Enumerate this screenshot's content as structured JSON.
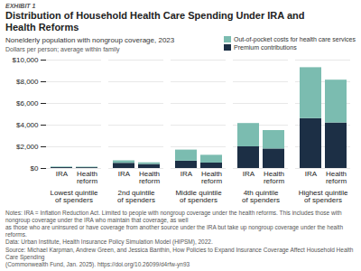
{
  "chart_data": {
    "type": "bar",
    "stacked": true,
    "exhibit": "EXHIBIT 1",
    "title": "Distribution of Household Health Care Spending Under IRA and\nHealth Reforms",
    "subtitle": "Nonelderly population with nongroup coverage, 2023",
    "ylabel": "Dollars per person; average within family",
    "groups": [
      "Lowest quintile\nof spenders",
      "2nd quintile\nof spenders",
      "Middle quintile\nof spenders",
      "4th quintile\nof spenders",
      "Highest quintile\nof spenders"
    ],
    "categories": [
      "IRA",
      "Health\nreform",
      "IRA",
      "Health\nreform",
      "IRA",
      "Health\nreform",
      "IRA",
      "Health\nreform",
      "IRA",
      "Health\nreform"
    ],
    "series": [
      {
        "name": "Premium contributions",
        "color": "#1c2f45",
        "values": [
          80,
          75,
          480,
          370,
          680,
          500,
          2000,
          1800,
          4600,
          4200
        ]
      },
      {
        "name": "Out-of-pocket costs for health care services",
        "color": "#7bbcb0",
        "values": [
          55,
          50,
          230,
          155,
          1020,
          720,
          2150,
          1700,
          4700,
          3950
        ]
      }
    ],
    "ylim": [
      0,
      10000
    ],
    "yticks": [
      {
        "value": 0,
        "label": "$0"
      },
      {
        "value": 2000,
        "label": "$2,000"
      },
      {
        "value": 4000,
        "label": "$4,000"
      },
      {
        "value": 6000,
        "label": "$6,000"
      },
      {
        "value": 8000,
        "label": "$8,000"
      },
      {
        "value": 10000,
        "label": "$10,000"
      }
    ],
    "grid": true,
    "legend": "upper right",
    "notes": [
      "Notes: IRA = Inflation Reduction Act. Limited to people with nongroup coverage under the health reforms. This includes those with nongroup coverage under the IRA who maintain that coverage, as well",
      "as those who are uninsured or have coverage from another source under the IRA but take up nongroup coverage under the health reforms.",
      "Data: Urban Institute, Health Insurance Policy Simulation Model (HIPSM), 2022."
    ],
    "source": [
      "Source: Michael Karpman, Andrew Green, and Jessica Banthin, How Policies to Expand Insurance Coverage Affect Household Health Care Spending",
      "(Commonwealth Fund, Jan. 2025). https://doi.org/10.26099/d4rfw-yn93"
    ]
  }
}
